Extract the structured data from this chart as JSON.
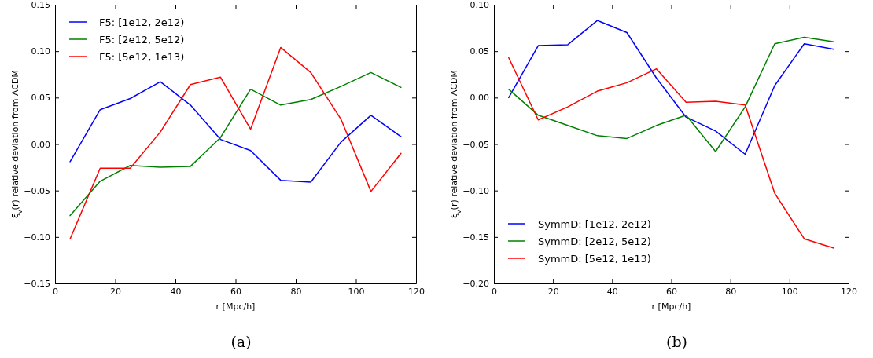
{
  "chart_data": [
    {
      "type": "line",
      "xlabel": "r [Mpc/h]",
      "ylabel": "ξ$_{v}$(r) relative deviation from ΛCDM",
      "annotations": [
        "(a)"
      ],
      "x": [
        5,
        15,
        25,
        35,
        45,
        55,
        65,
        75,
        85,
        95,
        105,
        115
      ],
      "xlim": [
        0,
        120
      ],
      "xticks": [
        0,
        20,
        40,
        60,
        80,
        100,
        120
      ],
      "ylim": [
        -0.15,
        0.15
      ],
      "yticks": [
        {
          "value": -0.15,
          "label": "−0.15"
        },
        {
          "value": -0.1,
          "label": "−0.10"
        },
        {
          "value": -0.05,
          "label": "−0.05"
        },
        {
          "value": 0,
          "label": "0.00"
        },
        {
          "value": 0.05,
          "label": "0.05"
        },
        {
          "value": 0.1,
          "label": "0.10"
        },
        {
          "value": 0.15,
          "label": "0.15"
        }
      ],
      "legend": "top left",
      "grid": false,
      "series": [
        {
          "name": "F5: [1e12, 2e12)",
          "color": "#0000ff",
          "values": [
            -0.019,
            0.037,
            0.049,
            0.067,
            0.042,
            0.005,
            -0.007,
            -0.039,
            -0.041,
            0.002,
            0.031,
            0.008
          ]
        },
        {
          "name": "F5: [2e12, 5e12)",
          "color": "#008000",
          "values": [
            -0.077,
            -0.04,
            -0.023,
            -0.025,
            -0.024,
            0.007,
            0.059,
            0.042,
            0.048,
            0.062,
            0.077,
            0.061
          ]
        },
        {
          "name": "F5: [5e12, 1e13)",
          "color": "#ff0000",
          "values": [
            -0.102,
            -0.026,
            -0.026,
            0.013,
            0.064,
            0.072,
            0.016,
            0.104,
            0.077,
            0.027,
            -0.051,
            -0.01
          ]
        }
      ]
    },
    {
      "type": "line",
      "xlabel": "r [Mpc/h]",
      "ylabel": "ξ$_{v}$(r) relative deviation from ΛCDM",
      "annotations": [
        "(b)"
      ],
      "x": [
        5,
        15,
        25,
        35,
        45,
        55,
        65,
        75,
        85,
        95,
        105,
        115
      ],
      "xlim": [
        0,
        120
      ],
      "xticks": [
        0,
        20,
        40,
        60,
        80,
        100,
        120
      ],
      "ylim": [
        -0.2,
        0.1
      ],
      "yticks": [
        {
          "value": -0.2,
          "label": "−0.20"
        },
        {
          "value": -0.15,
          "label": "−0.15"
        },
        {
          "value": -0.1,
          "label": "−0.10"
        },
        {
          "value": -0.05,
          "label": "−0.05"
        },
        {
          "value": 0,
          "label": "0.00"
        },
        {
          "value": 0.05,
          "label": "0.05"
        },
        {
          "value": 0.1,
          "label": "0.10"
        }
      ],
      "legend": "bottom left",
      "grid": false,
      "series": [
        {
          "name": "SymmD: [1e12, 2e12)",
          "color": "#0000ff",
          "values": [
            0.0,
            0.056,
            0.057,
            0.083,
            0.07,
            0.021,
            -0.021,
            -0.036,
            -0.061,
            0.013,
            0.058,
            0.052
          ]
        },
        {
          "name": "SymmD: [2e12, 5e12)",
          "color": "#008000",
          "values": [
            0.009,
            -0.019,
            -0.03,
            -0.041,
            -0.044,
            -0.03,
            -0.019,
            -0.058,
            -0.01,
            0.058,
            0.065,
            0.06
          ]
        },
        {
          "name": "SymmD: [5e12, 1e13)",
          "color": "#ff0000",
          "values": [
            0.043,
            -0.024,
            -0.01,
            0.007,
            0.016,
            0.031,
            -0.005,
            -0.004,
            -0.008,
            -0.103,
            -0.152,
            -0.162
          ]
        }
      ]
    }
  ]
}
